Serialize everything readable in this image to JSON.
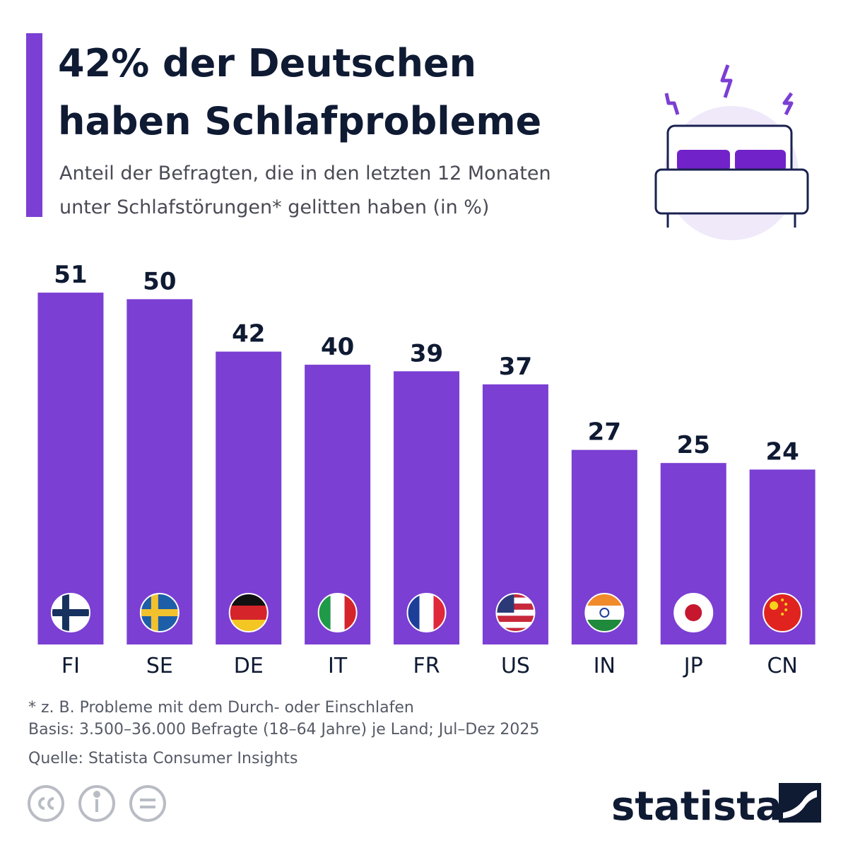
{
  "chart_data": {
    "type": "bar",
    "title": [
      "42% der Deutschen",
      "haben Schlafprobleme"
    ],
    "subtitle": [
      "Anteil der Befragten, die in den letzten 12 Monaten",
      "unter Schlafstörungen* gelitten haben (in %)"
    ],
    "categories": [
      "FI",
      "SE",
      "DE",
      "IT",
      "FR",
      "US",
      "IN",
      "JP",
      "CN"
    ],
    "values": [
      51,
      50,
      42,
      40,
      39,
      37,
      27,
      25,
      24
    ],
    "color": "#7b3fd3",
    "ylim": [
      0,
      51
    ],
    "notes": [
      "* z. B. Probleme mit dem Durch- oder Einschlafen",
      "Basis: 3.500–36.000 Befragte (18–64 Jahre) je Land; Jul–Dez 2025"
    ],
    "source": "Quelle: Statista Consumer Insights",
    "brand": "statista"
  }
}
